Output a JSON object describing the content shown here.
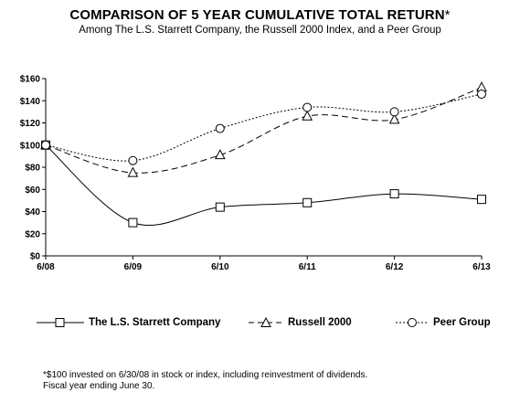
{
  "header": {
    "title": "COMPARISON OF 5 YEAR CUMULATIVE TOTAL RETURN",
    "title_mark": "*",
    "subtitle": "Among The L.S. Starrett Company, the Russell 2000 Index, and a Peer Group"
  },
  "chart_data": {
    "type": "line",
    "title": "COMPARISON OF 5 YEAR CUMULATIVE TOTAL RETURN*",
    "subtitle": "Among The L.S. Starrett Company, the Russell 2000 Index, and a Peer Group",
    "categories": [
      "6/08",
      "6/09",
      "6/10",
      "6/11",
      "6/12",
      "6/13"
    ],
    "ylim": [
      0,
      160
    ],
    "yticks": [
      0,
      20,
      40,
      60,
      80,
      100,
      120,
      140,
      160
    ],
    "ytick_labels": [
      "$0",
      "$20",
      "$40",
      "$60",
      "$80",
      "$100",
      "$120",
      "$140",
      "$160"
    ],
    "xlabel": "",
    "ylabel": "",
    "grid": false,
    "legend_position": "bottom",
    "series": [
      {
        "name": "The L.S. Starrett Company",
        "values": [
          100,
          30,
          44,
          48,
          56,
          51
        ],
        "marker": "square",
        "dash": "solid",
        "color": "#000000"
      },
      {
        "name": "Russell 2000",
        "values": [
          100,
          75,
          91,
          126,
          123,
          152
        ],
        "marker": "triangle",
        "dash": "dashed",
        "color": "#000000"
      },
      {
        "name": "Peer Group",
        "values": [
          100,
          86,
          115,
          134,
          130,
          146
        ],
        "marker": "circle",
        "dash": "dotted",
        "color": "#000000"
      }
    ]
  },
  "footnote": {
    "line1": "*$100 invested on 6/30/08 in stock or index, including reinvestment of dividends.",
    "line2": "Fiscal year ending June 30."
  }
}
